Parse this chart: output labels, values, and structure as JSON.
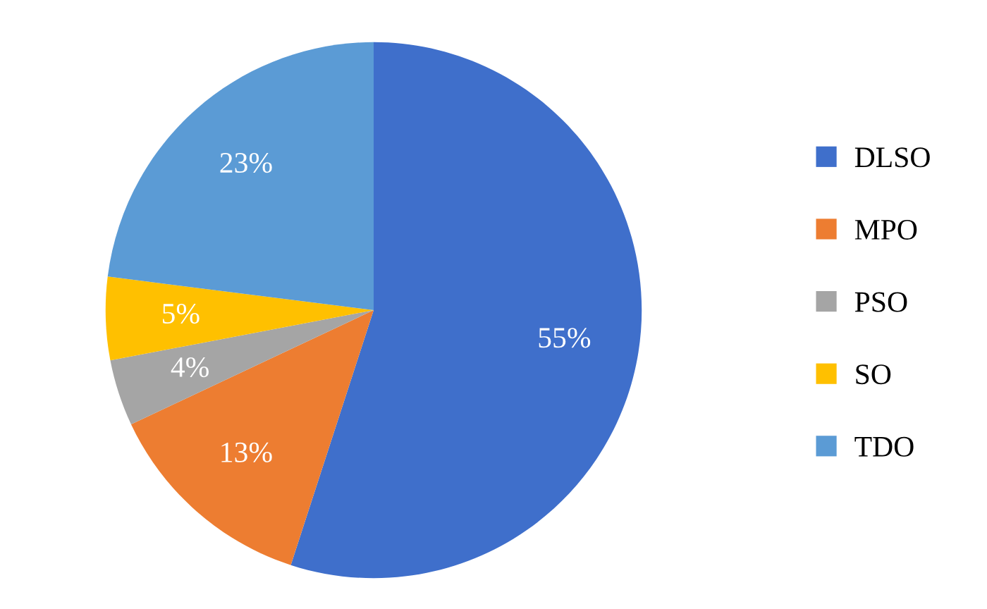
{
  "chart_data": {
    "type": "pie",
    "categories": [
      "DLSO",
      "MPO",
      "PSO",
      "SO",
      "TDO"
    ],
    "values": [
      55,
      13,
      4,
      5,
      23
    ],
    "value_labels": [
      "55%",
      "13%",
      "4%",
      "5%",
      "23%"
    ],
    "colors": [
      "#3f6fcb",
      "#ed7d31",
      "#a5a5a5",
      "#ffc000",
      "#5b9bd5"
    ],
    "legend": "right"
  }
}
